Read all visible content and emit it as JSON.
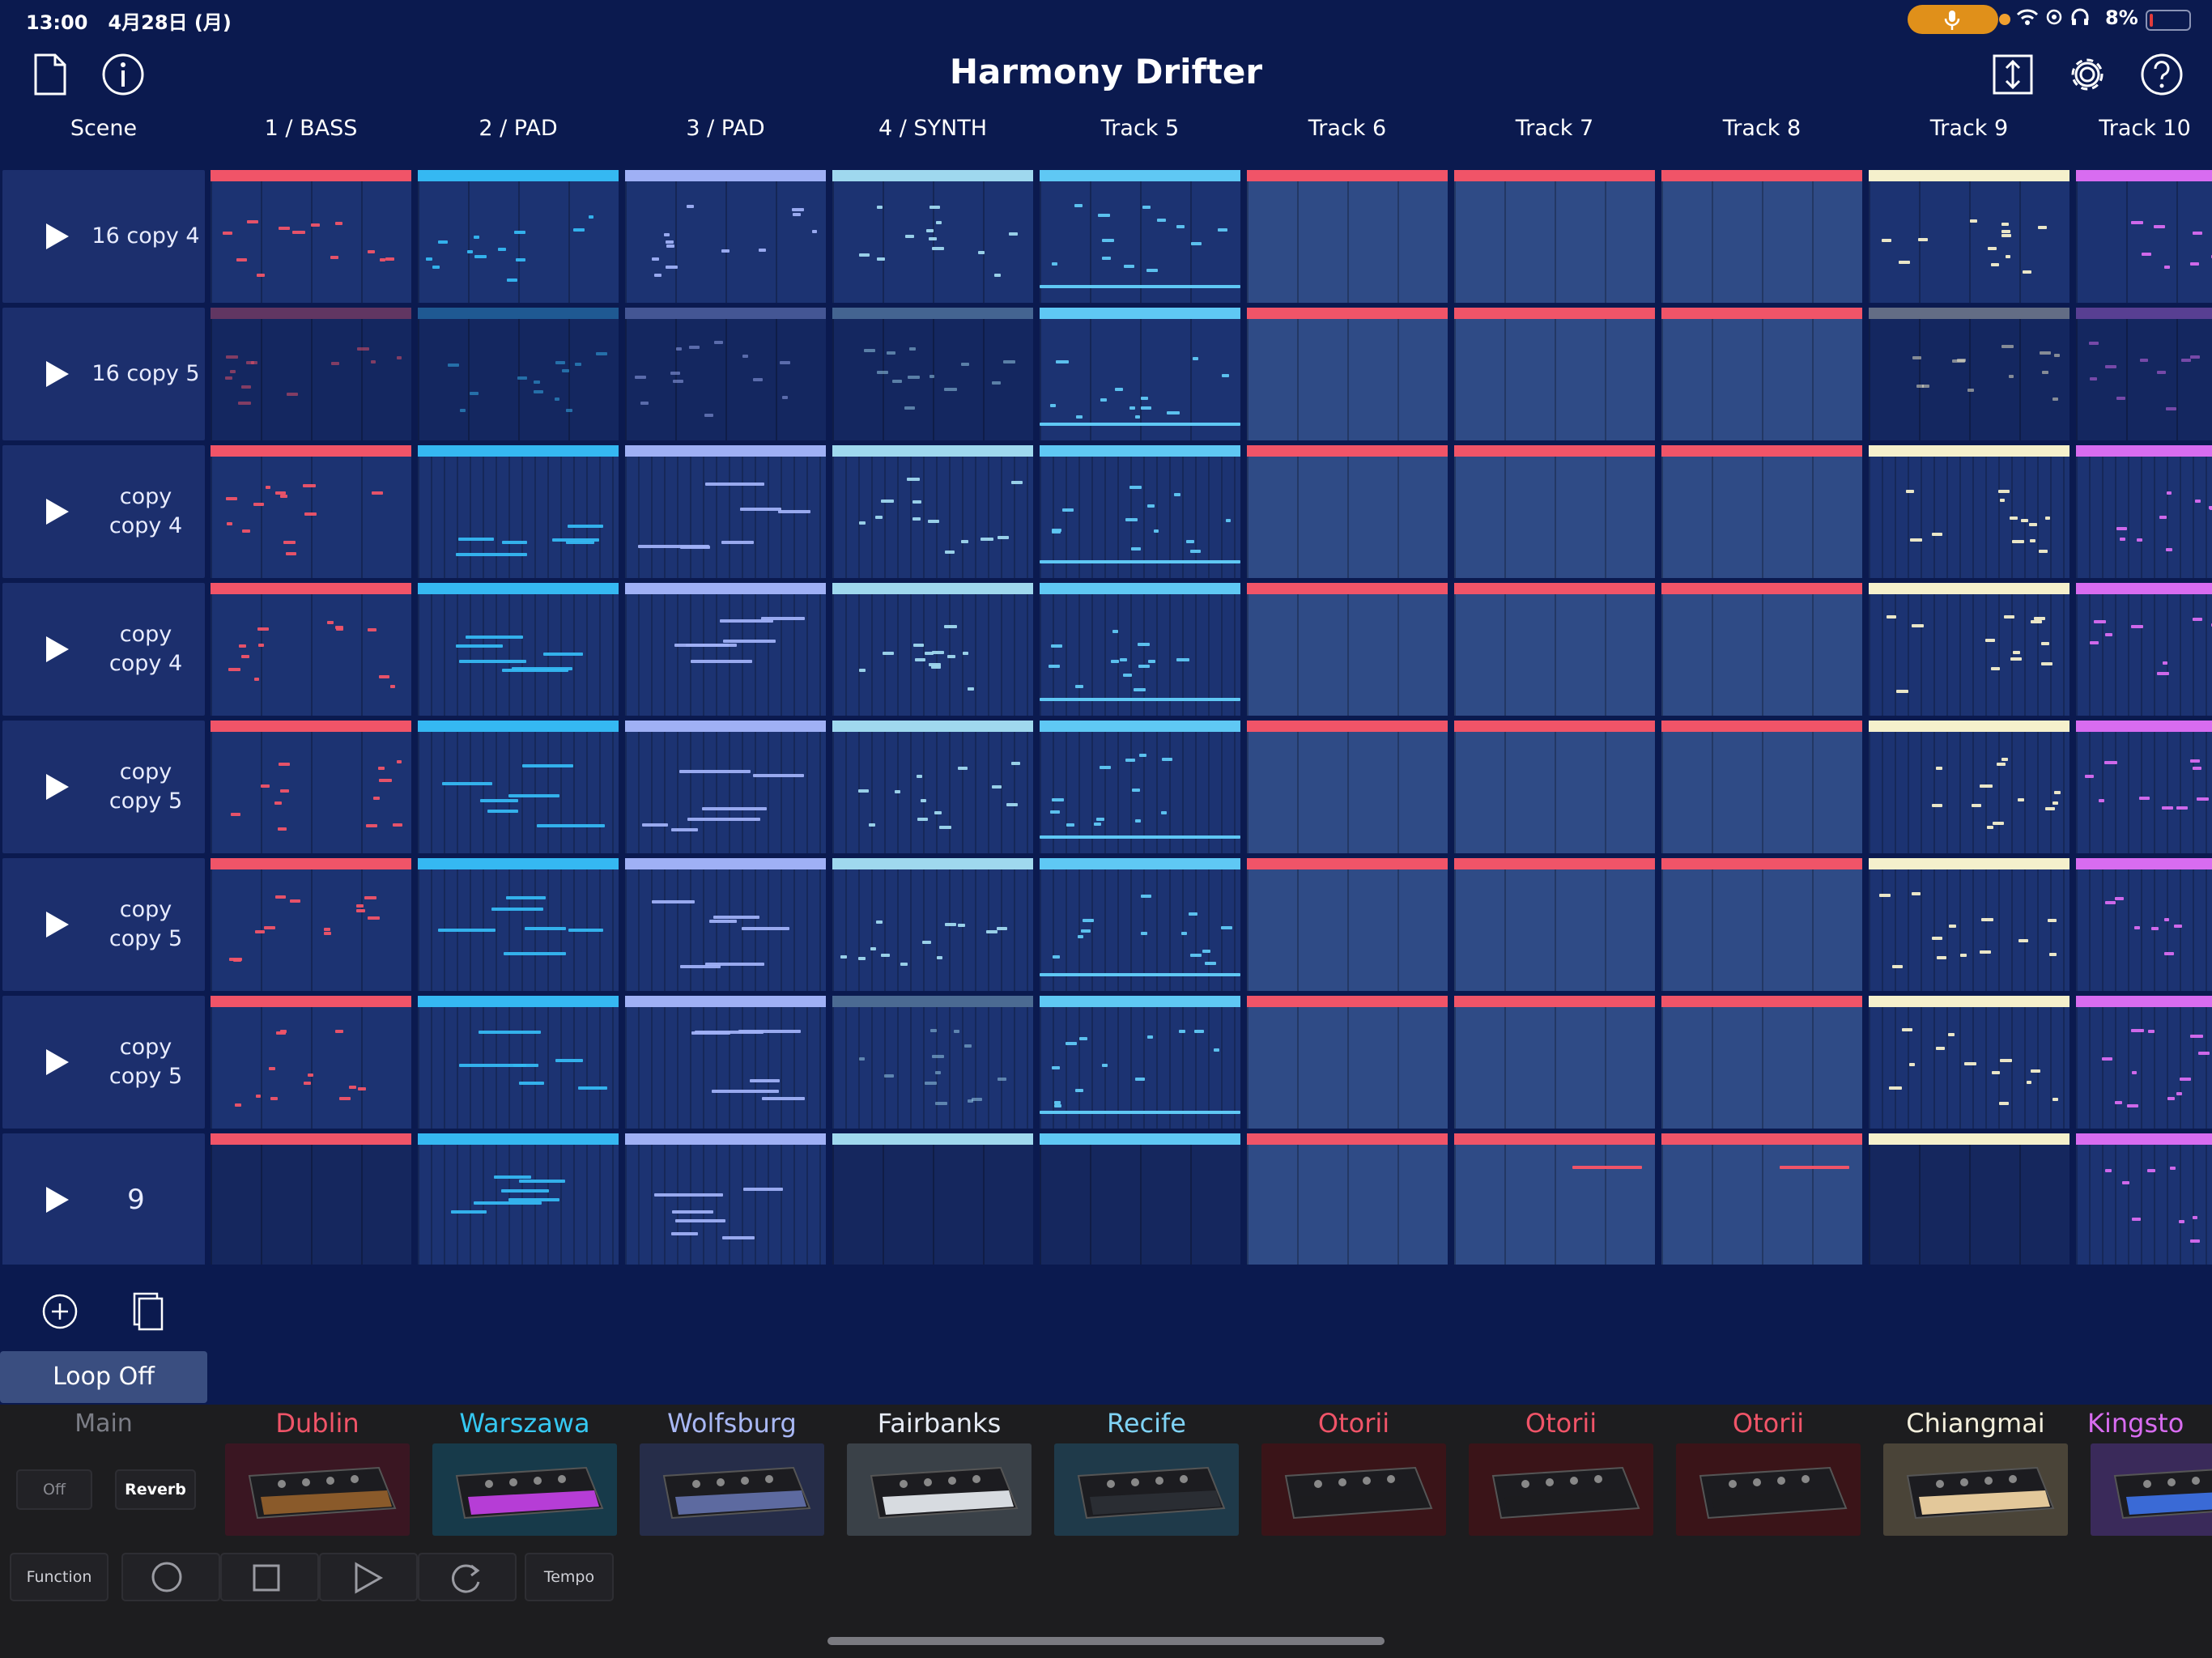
{
  "status_bar": {
    "time": "13:00",
    "date": "4月28日 (月)",
    "battery_percent": "8%",
    "battery_level": 0.08,
    "icons": [
      "mic-icon",
      "wifi-icon",
      "location-icon",
      "headphones-icon",
      "battery-icon"
    ]
  },
  "header": {
    "title": "Harmony Drifter",
    "left_icons": [
      "document-icon",
      "info-icon"
    ],
    "right_icons": [
      "resize-vertical-icon",
      "gear-icon",
      "help-icon"
    ]
  },
  "columns": {
    "scene_label": "Scene",
    "tracks": [
      "1 / BASS",
      "2 / PAD",
      "3 / PAD",
      "4 / SYNTH",
      "Track 5",
      "Track 6",
      "Track 7",
      "Track 8",
      "Track 9",
      "Track 10"
    ]
  },
  "scenes": [
    {
      "label": "16 copy 4"
    },
    {
      "label": "16 copy 5"
    },
    {
      "label": "copy\ncopy 4"
    },
    {
      "label": "copy\ncopy 4"
    },
    {
      "label": "copy\ncopy 5"
    },
    {
      "label": "copy\ncopy 5"
    },
    {
      "label": "copy\ncopy 5"
    },
    {
      "label": "9"
    }
  ],
  "track_colors": [
    "#f05468",
    "#35b8f2",
    "#9fb0f5",
    "#9fd8ee",
    "#5fc8f4",
    "#f05468",
    "#f05468",
    "#f05468",
    "#f5f0cc",
    "#d86cf0"
  ],
  "tools": {
    "add_icon": "add-circle-icon",
    "duplicate_icon": "duplicate-icon"
  },
  "loop_button": "Loop Off",
  "dock": {
    "main_label": "Main",
    "off_label": "Off",
    "reverb_label": "Reverb",
    "function_label": "Function",
    "tempo_label": "Tempo",
    "transport_icons": [
      "record-icon",
      "stop-icon",
      "play-icon",
      "loop-icon"
    ],
    "instruments": [
      {
        "name": "Dublin",
        "color": "#f05468"
      },
      {
        "name": "Warszawa",
        "color": "#35c8f2"
      },
      {
        "name": "Wolfsburg",
        "color": "#a9b8f5"
      },
      {
        "name": "Fairbanks",
        "color": "#e6ebf5"
      },
      {
        "name": "Recife",
        "color": "#7fd2f4"
      },
      {
        "name": "Otorii",
        "color": "#f05468"
      },
      {
        "name": "Otorii",
        "color": "#f05468"
      },
      {
        "name": "Otorii",
        "color": "#f05468"
      },
      {
        "name": "Chiangmai",
        "color": "#f3efdc"
      },
      {
        "name": "Kingsto",
        "color": "#d86cf0"
      }
    ]
  }
}
